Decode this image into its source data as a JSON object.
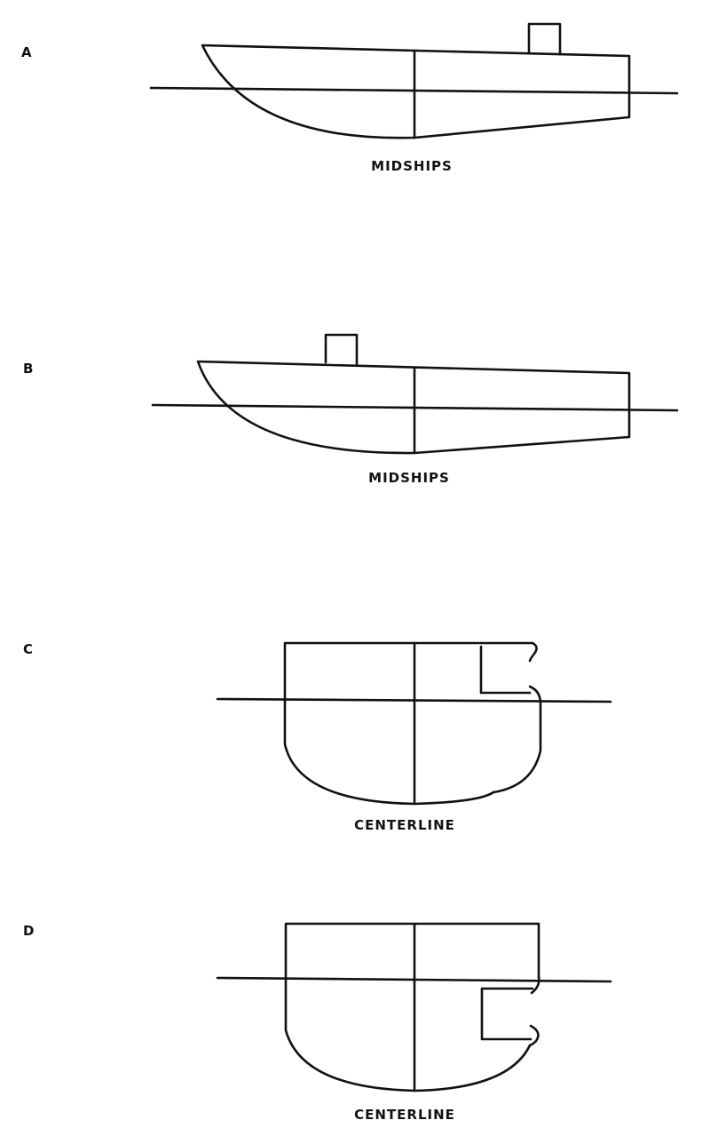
{
  "panels": [
    {
      "letter": "A",
      "caption": "MIDSHIPS"
    },
    {
      "letter": "B",
      "caption": "MIDSHIPS"
    },
    {
      "letter": "C",
      "caption": "CENTERLINE"
    },
    {
      "letter": "D",
      "caption": "CENTERLINE"
    }
  ],
  "colors": {
    "ink": "#111111",
    "background": "#ffffff"
  }
}
